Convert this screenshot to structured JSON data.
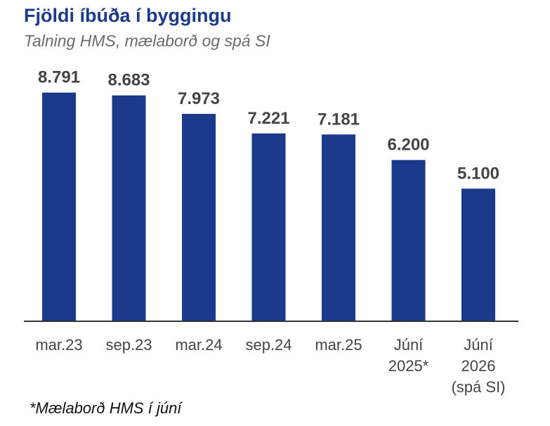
{
  "title": "Fjöldi íbúða í byggingu",
  "subtitle": "Talning HMS, mælaborð og spá SI",
  "footnote": "*Mælaborð HMS í júní",
  "colors": {
    "bar": "#1b3a8c",
    "title": "#1d3a8a",
    "subtitle": "#6b6b6b",
    "axis": "#333333",
    "label": "#444444"
  },
  "chart_data": {
    "type": "bar",
    "title": "Fjöldi íbúða í byggingu",
    "subtitle": "Talning HMS, mælaborð og spá SI",
    "categories": [
      [
        "mar.23"
      ],
      [
        "sep.23"
      ],
      [
        "mar.24"
      ],
      [
        "sep.24"
      ],
      [
        "mar.25"
      ],
      [
        "Júní",
        "2025*"
      ],
      [
        "Júní",
        "2026",
        "(spá SI)"
      ]
    ],
    "values": [
      8791,
      8683,
      7973,
      7221,
      7181,
      6200,
      5100
    ],
    "value_labels": [
      "8.791",
      "8.683",
      "7.973",
      "7.221",
      "7.181",
      "6.200",
      "5.100"
    ],
    "xlabel": "",
    "ylabel": "",
    "ylim": [
      0,
      9000
    ],
    "grid": false,
    "legend": "none"
  }
}
